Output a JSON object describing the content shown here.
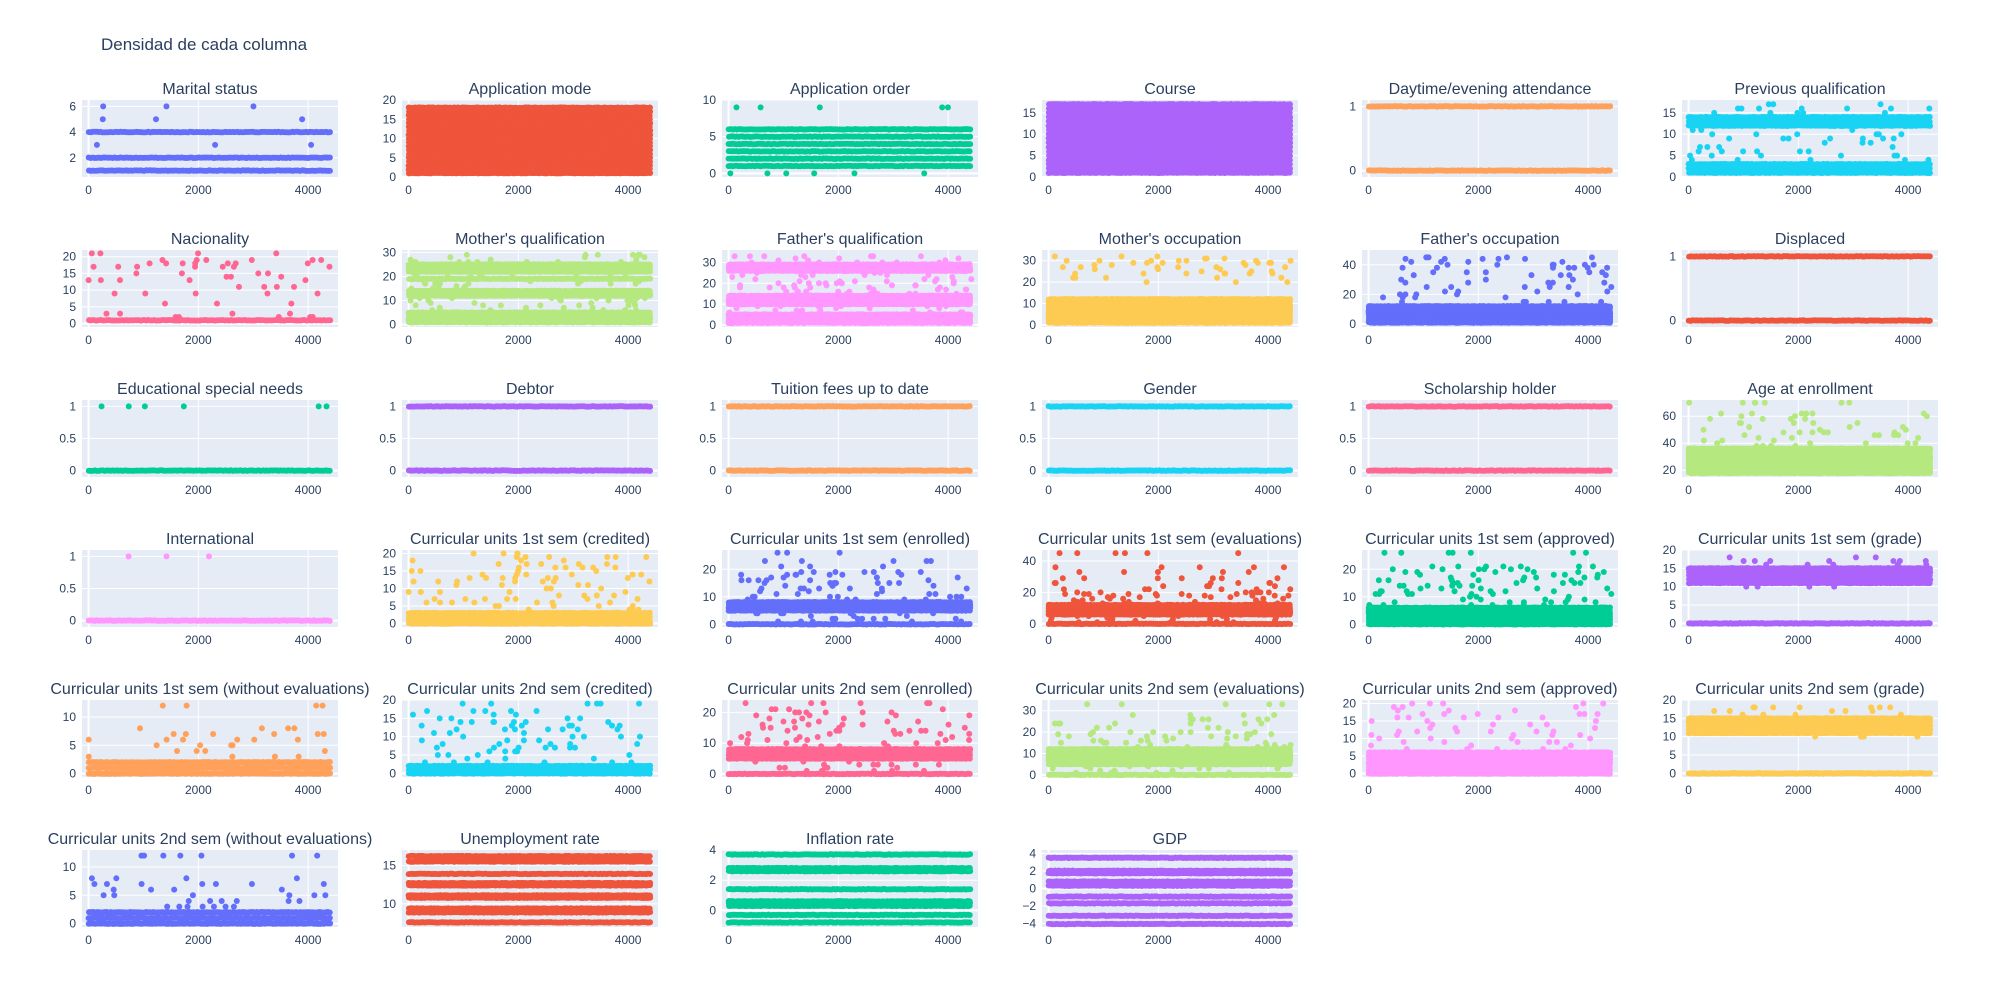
{
  "title": "Densidad de cada columna",
  "colors": [
    "#636efa",
    "#ef553b",
    "#00cc96",
    "#ab63fa",
    "#ffa15a",
    "#19d3f3",
    "#ff6692",
    "#b6e880",
    "#ff97ff",
    "#fecb52"
  ],
  "chart_data": {
    "type": "scatter",
    "xlim": [
      -120,
      4544
    ],
    "xticks": [
      0,
      2000,
      4000
    ],
    "n_points_approx": 4424,
    "grid": "on",
    "columns": 6,
    "subplots": [
      {
        "name": "Marital status",
        "ylim": [
          0.5,
          6.5
        ],
        "yticks": [
          2,
          4,
          6
        ],
        "values": [
          1,
          2,
          4
        ],
        "sparse_values": [
          3,
          5,
          6
        ]
      },
      {
        "name": "Application mode",
        "ylim": [
          0,
          20
        ],
        "yticks": [
          0,
          5,
          10,
          15,
          20
        ],
        "values": [
          1,
          2,
          3,
          4,
          5,
          6,
          7,
          8,
          9,
          10,
          11,
          12,
          13,
          14,
          15,
          16,
          17,
          18
        ],
        "sparse_values": []
      },
      {
        "name": "Application order",
        "ylim": [
          -0.5,
          10
        ],
        "yticks": [
          0,
          5,
          10
        ],
        "values": [
          1,
          2,
          3,
          4,
          5,
          6
        ],
        "sparse_values": [
          0,
          9
        ]
      },
      {
        "name": "Course",
        "ylim": [
          0,
          18
        ],
        "yticks": [
          0,
          5,
          10,
          15
        ],
        "values": [
          1,
          2,
          3,
          4,
          5,
          6,
          7,
          8,
          9,
          10,
          11,
          12,
          13,
          14,
          15,
          16,
          17
        ],
        "sparse_values": []
      },
      {
        "name": "Daytime/evening attendance",
        "ylim": [
          -0.1,
          1.1
        ],
        "yticks": [
          0,
          1
        ],
        "values": [
          0,
          1
        ],
        "sparse_values": []
      },
      {
        "name": "Previous qualification",
        "ylim": [
          0,
          18
        ],
        "yticks": [
          0,
          5,
          10,
          15
        ],
        "values": [
          1,
          2,
          3,
          12,
          13,
          14
        ],
        "sparse_values": [
          4,
          5,
          6,
          7,
          8,
          9,
          10,
          11,
          15,
          16,
          17
        ]
      },
      {
        "name": "Nacionality",
        "ylim": [
          -1,
          22
        ],
        "yticks": [
          0,
          5,
          10,
          15,
          20
        ],
        "values": [
          1
        ],
        "sparse_values": [
          2,
          3,
          6,
          9,
          11,
          13,
          14,
          15,
          17,
          18,
          19,
          21
        ]
      },
      {
        "name": "Mother's qualification",
        "ylim": [
          -1,
          31
        ],
        "yticks": [
          0,
          10,
          20,
          30
        ],
        "values": [
          1,
          2,
          3,
          4,
          5,
          12,
          13,
          14,
          19,
          22,
          23,
          24,
          25
        ],
        "sparse_values": [
          6,
          7,
          8,
          9,
          10,
          11,
          15,
          16,
          17,
          18,
          20,
          21,
          26,
          27,
          28,
          29
        ]
      },
      {
        "name": "Father's qualification",
        "ylim": [
          -1,
          36
        ],
        "yticks": [
          0,
          10,
          20,
          30
        ],
        "values": [
          1,
          2,
          3,
          4,
          5,
          10,
          11,
          12,
          13,
          14,
          26,
          27,
          28,
          29
        ],
        "sparse_values": [
          6,
          7,
          8,
          9,
          15,
          16,
          17,
          18,
          19,
          20,
          21,
          22,
          23,
          24,
          25,
          30,
          31,
          32,
          33
        ]
      },
      {
        "name": "Mother's occupation",
        "ylim": [
          -1,
          35
        ],
        "yticks": [
          0,
          10,
          20,
          30
        ],
        "values": [
          1,
          2,
          3,
          4,
          5,
          6,
          7,
          8,
          9,
          10,
          11,
          12
        ],
        "sparse_values": [
          20,
          22,
          24,
          25,
          26,
          27,
          28,
          29,
          30,
          31,
          32
        ]
      },
      {
        "name": "Father's occupation",
        "ylim": [
          -2,
          50
        ],
        "yticks": [
          0,
          20,
          40
        ],
        "values": [
          1,
          2,
          3,
          4,
          5,
          6,
          7,
          8,
          9,
          10,
          11,
          12
        ],
        "sparse_values": [
          15,
          18,
          20,
          22,
          25,
          28,
          30,
          33,
          35,
          38,
          40,
          42,
          44,
          45
        ]
      },
      {
        "name": "Displaced",
        "ylim": [
          -0.1,
          1.1
        ],
        "yticks": [
          0,
          1
        ],
        "values": [
          0,
          1
        ],
        "sparse_values": []
      },
      {
        "name": "Educational special needs",
        "ylim": [
          -0.1,
          1.1
        ],
        "yticks": [
          0,
          0.5,
          1
        ],
        "values": [
          0
        ],
        "sparse_values": [
          1
        ]
      },
      {
        "name": "Debtor",
        "ylim": [
          -0.1,
          1.1
        ],
        "yticks": [
          0,
          0.5,
          1
        ],
        "values": [
          0,
          1
        ],
        "sparse_values": []
      },
      {
        "name": "Tuition fees up to date",
        "ylim": [
          -0.1,
          1.1
        ],
        "yticks": [
          0,
          0.5,
          1
        ],
        "values": [
          0,
          1
        ],
        "sparse_values": []
      },
      {
        "name": "Gender",
        "ylim": [
          -0.1,
          1.1
        ],
        "yticks": [
          0,
          0.5,
          1
        ],
        "values": [
          0,
          1
        ],
        "sparse_values": []
      },
      {
        "name": "Scholarship holder",
        "ylim": [
          -0.1,
          1.1
        ],
        "yticks": [
          0,
          0.5,
          1
        ],
        "values": [
          0,
          1
        ],
        "sparse_values": []
      },
      {
        "name": "Age at enrollment",
        "ylim": [
          15,
          72
        ],
        "yticks": [
          20,
          40,
          60
        ],
        "values": [
          18,
          19,
          20,
          21,
          22,
          23,
          24,
          25,
          26,
          27,
          28,
          29,
          30,
          32,
          34,
          36
        ],
        "sparse_values": [
          38,
          40,
          42,
          44,
          46,
          48,
          50,
          52,
          55,
          58,
          60,
          62,
          70
        ]
      },
      {
        "name": "International",
        "ylim": [
          -0.1,
          1.1
        ],
        "yticks": [
          0,
          0.5,
          1
        ],
        "values": [
          0
        ],
        "sparse_values": [
          1
        ]
      },
      {
        "name": "Curricular units 1st sem (credited)",
        "ylim": [
          -1,
          21
        ],
        "yticks": [
          0,
          5,
          10,
          15,
          20
        ],
        "values": [
          0,
          1,
          2,
          3
        ],
        "sparse_values": [
          4,
          5,
          6,
          7,
          8,
          9,
          10,
          11,
          12,
          13,
          14,
          15,
          16,
          17,
          18,
          19,
          20
        ]
      },
      {
        "name": "Curricular units 1st sem (enrolled)",
        "ylim": [
          -1,
          27
        ],
        "yticks": [
          0,
          10,
          20
        ],
        "values": [
          0,
          5,
          6,
          7,
          8
        ],
        "sparse_values": [
          1,
          2,
          3,
          4,
          9,
          10,
          11,
          12,
          13,
          14,
          15,
          16,
          17,
          18,
          19,
          21,
          23,
          26
        ]
      },
      {
        "name": "Curricular units 1st sem (evaluations)",
        "ylim": [
          -2,
          47
        ],
        "yticks": [
          0,
          20,
          40
        ],
        "values": [
          0,
          6,
          7,
          8,
          9,
          10,
          11,
          12
        ],
        "sparse_values": [
          1,
          2,
          3,
          4,
          5,
          13,
          14,
          15,
          16,
          17,
          18,
          19,
          20,
          22,
          24,
          26,
          29,
          33,
          36,
          45
        ]
      },
      {
        "name": "Curricular units 1st sem (approved)",
        "ylim": [
          -1,
          27
        ],
        "yticks": [
          0,
          10,
          20
        ],
        "values": [
          0,
          1,
          2,
          3,
          4,
          5,
          6
        ],
        "sparse_values": [
          7,
          8,
          9,
          10,
          11,
          12,
          13,
          14,
          15,
          16,
          17,
          18,
          19,
          20,
          21,
          26
        ]
      },
      {
        "name": "Curricular units 1st sem (grade)",
        "ylim": [
          -1,
          20
        ],
        "yticks": [
          0,
          5,
          10,
          15,
          20
        ],
        "values": [
          0,
          11,
          12,
          13,
          14,
          15
        ],
        "sparse_values": [
          10,
          16,
          17,
          18
        ]
      },
      {
        "name": "Curricular units 1st sem (without evaluations)",
        "ylim": [
          -0.6,
          13
        ],
        "yticks": [
          0,
          5,
          10
        ],
        "values": [
          0,
          1,
          2
        ],
        "sparse_values": [
          3,
          4,
          5,
          6,
          7,
          8,
          12
        ]
      },
      {
        "name": "Curricular units 2nd sem (credited)",
        "ylim": [
          -1,
          20
        ],
        "yticks": [
          0,
          5,
          10,
          15,
          20
        ],
        "values": [
          0,
          1,
          2
        ],
        "sparse_values": [
          3,
          4,
          5,
          6,
          7,
          8,
          9,
          10,
          11,
          12,
          13,
          14,
          15,
          16,
          17,
          19
        ]
      },
      {
        "name": "Curricular units 2nd sem (enrolled)",
        "ylim": [
          -1,
          24
        ],
        "yticks": [
          0,
          10,
          20
        ],
        "values": [
          0,
          5,
          6,
          7,
          8
        ],
        "sparse_values": [
          1,
          2,
          3,
          4,
          9,
          10,
          11,
          12,
          13,
          14,
          15,
          16,
          17,
          18,
          19,
          20,
          21,
          23
        ]
      },
      {
        "name": "Curricular units 2nd sem (evaluations)",
        "ylim": [
          -1,
          35
        ],
        "yticks": [
          0,
          10,
          20,
          30
        ],
        "values": [
          0,
          5,
          6,
          7,
          8,
          9,
          10,
          11,
          12
        ],
        "sparse_values": [
          1,
          2,
          3,
          4,
          13,
          14,
          15,
          16,
          17,
          18,
          19,
          20,
          22,
          24,
          26,
          28,
          33
        ]
      },
      {
        "name": "Curricular units 2nd sem (approved)",
        "ylim": [
          -1,
          21
        ],
        "yticks": [
          0,
          5,
          10,
          15,
          20
        ],
        "values": [
          0,
          1,
          2,
          3,
          4,
          5,
          6
        ],
        "sparse_values": [
          7,
          8,
          9,
          10,
          11,
          12,
          13,
          14,
          15,
          16,
          17,
          18,
          19,
          20
        ]
      },
      {
        "name": "Curricular units 2nd sem (grade)",
        "ylim": [
          -1,
          20
        ],
        "yticks": [
          0,
          5,
          10,
          15,
          20
        ],
        "values": [
          0,
          11,
          12,
          13,
          14,
          15
        ],
        "sparse_values": [
          10,
          16,
          17,
          18
        ]
      },
      {
        "name": "Curricular units 2nd sem (without evaluations)",
        "ylim": [
          -0.6,
          13
        ],
        "yticks": [
          0,
          5,
          10
        ],
        "values": [
          0,
          1,
          2
        ],
        "sparse_values": [
          3,
          4,
          5,
          6,
          7,
          8,
          12
        ]
      },
      {
        "name": "Unemployment rate",
        "ylim": [
          7,
          17
        ],
        "yticks": [
          10,
          15
        ],
        "values": [
          7.6,
          8.9,
          9.4,
          10.8,
          11.1,
          12.4,
          12.7,
          13.9,
          15.5,
          16.2
        ],
        "sparse_values": []
      },
      {
        "name": "Inflation rate",
        "ylim": [
          -1.1,
          4
        ],
        "yticks": [
          0,
          2,
          4
        ],
        "values": [
          -0.8,
          -0.3,
          0.3,
          0.5,
          0.6,
          1.4,
          2.6,
          2.8,
          3.7
        ],
        "sparse_values": []
      },
      {
        "name": "GDP",
        "ylim": [
          -4.4,
          4.4
        ],
        "yticks": [
          -4,
          -2,
          0,
          2,
          4
        ],
        "values": [
          -4.06,
          -3.12,
          -1.7,
          -0.92,
          0.32,
          0.79,
          1.74,
          1.79,
          2.02,
          3.51
        ],
        "sparse_values": []
      }
    ]
  }
}
